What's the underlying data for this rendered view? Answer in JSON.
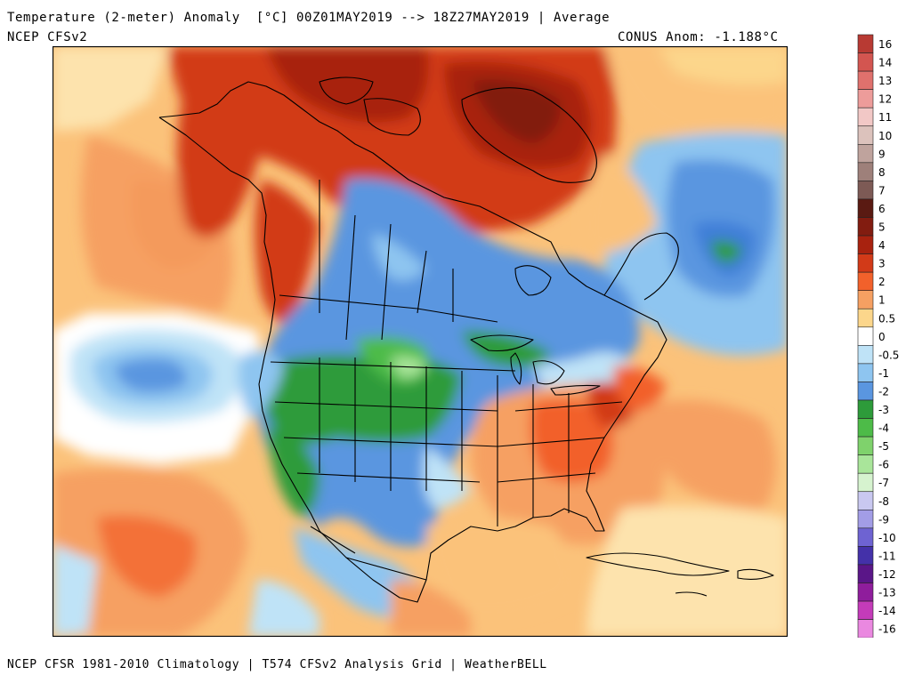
{
  "header": {
    "title": "Temperature (2-meter) Anomaly  [°C] 00Z01MAY2019 --> 18Z27MAY2019 | Average",
    "model": "NCEP CFSv2",
    "anomaly": "CONUS Anom: -1.188°C"
  },
  "footer": "NCEP CFSR 1981-2010 Climatology | T574 CFSv2 Analysis Grid | WeatherBELL",
  "legend": {
    "labels": [
      "16",
      "14",
      "13",
      "12",
      "11",
      "10",
      "9",
      "8",
      "7",
      "6",
      "5",
      "4",
      "3",
      "2",
      "1",
      "0.5",
      "0",
      "-0.5",
      "-1",
      "-2",
      "-3",
      "-4",
      "-5",
      "-6",
      "-7",
      "-8",
      "-9",
      "-10",
      "-11",
      "-12",
      "-13",
      "-14",
      "-16"
    ],
    "colors": [
      "#b83a33",
      "#d35550",
      "#e0716d",
      "#ed9c9a",
      "#f2c8c6",
      "#dcc2bc",
      "#bfa39d",
      "#9e807a",
      "#7d5a55",
      "#5a1a12",
      "#821c10",
      "#a8220f",
      "#d23a18",
      "#f2612b",
      "#f6a062",
      "#fcd68b",
      "#ffffff",
      "#bfe3f7",
      "#8ec5f0",
      "#5a96e0",
      "#2d9b3a",
      "#4dbb48",
      "#7fd26c",
      "#a9e59a",
      "#d6f3cf",
      "#c9c8f0",
      "#a29de6",
      "#6e63d2",
      "#4431a9",
      "#5a1688",
      "#8f1d9c",
      "#c43bb9",
      "#ea88e0"
    ],
    "highlight_text": "#ffffff"
  }
}
